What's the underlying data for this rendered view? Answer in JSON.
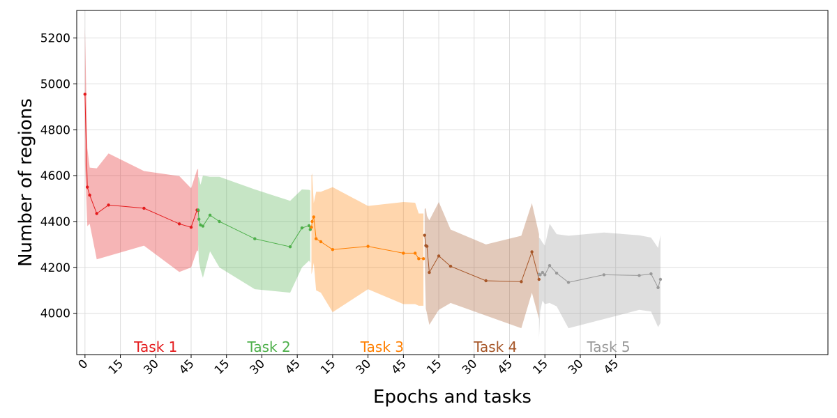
{
  "chart_data": {
    "type": "line",
    "xlabel": "Epochs and tasks",
    "ylabel": "Number of regions",
    "ylim": [
      3820,
      5320
    ],
    "xlim": [
      -3.5,
      315
    ],
    "grid": true,
    "y_ticks": [
      4000,
      4200,
      4400,
      4600,
      4800,
      5000,
      5200
    ],
    "x_ticks": [
      {
        "x": 0,
        "label": "0"
      },
      {
        "x": 15,
        "label": "15"
      },
      {
        "x": 30,
        "label": "30"
      },
      {
        "x": 45,
        "label": "45"
      },
      {
        "x": 60,
        "label": "15"
      },
      {
        "x": 75,
        "label": "30"
      },
      {
        "x": 90,
        "label": "45"
      },
      {
        "x": 105,
        "label": "15"
      },
      {
        "x": 120,
        "label": "30"
      },
      {
        "x": 135,
        "label": "45"
      },
      {
        "x": 150,
        "label": "15"
      },
      {
        "x": 165,
        "label": "30"
      },
      {
        "x": 180,
        "label": "45"
      },
      {
        "x": 195,
        "label": "15"
      },
      {
        "x": 210,
        "label": "30"
      },
      {
        "x": 225,
        "label": "45"
      }
    ],
    "series": [
      {
        "name": "Task 1",
        "color": "#e41a1c",
        "x": [
          0,
          1,
          2,
          5,
          10,
          25,
          40,
          45,
          47.5,
          48
        ],
        "y": [
          4955,
          4550,
          4515,
          4435,
          4472,
          4458,
          4390,
          4375,
          4450,
          4448
        ],
        "lower": [
          4660,
          4380,
          4390,
          4235,
          4250,
          4295,
          4180,
          4200,
          4275,
          4270
        ],
        "upper": [
          5250,
          4720,
          4635,
          4632,
          4697,
          4620,
          4598,
          4545,
          4625,
          4630
        ]
      },
      {
        "name": "Task 2",
        "color": "#4daf4a",
        "x": [
          48,
          48.3,
          49,
          50,
          53,
          57,
          72,
          87,
          92,
          95,
          95.5
        ],
        "y": [
          4450,
          4410,
          4385,
          4380,
          4428,
          4400,
          4325,
          4290,
          4372,
          4382,
          4365
        ],
        "lower": [
          4300,
          4225,
          4190,
          4155,
          4270,
          4200,
          4105,
          4090,
          4200,
          4230,
          4220
        ],
        "upper": [
          4595,
          4590,
          4560,
          4600,
          4595,
          4595,
          4540,
          4490,
          4540,
          4538,
          4535
        ]
      },
      {
        "name": "Task 3",
        "color": "#ff7f00",
        "x": [
          96,
          96.3,
          97,
          98,
          100,
          105,
          120,
          135,
          140,
          141.5,
          143.5
        ],
        "y": [
          4375,
          4400,
          4420,
          4325,
          4312,
          4278,
          4292,
          4262,
          4262,
          4238,
          4238
        ],
        "lower": [
          4170,
          4180,
          4220,
          4100,
          4090,
          4005,
          4105,
          4040,
          4040,
          4033,
          4033
        ],
        "upper": [
          4600,
          4610,
          4480,
          4530,
          4530,
          4550,
          4468,
          4485,
          4482,
          4435,
          4435
        ]
      },
      {
        "name": "Task 4",
        "color": "#a65628",
        "x": [
          144,
          144.5,
          145,
          146,
          150,
          155,
          170,
          185,
          189.5,
          192.5
        ],
        "y": [
          4340,
          4295,
          4292,
          4178,
          4250,
          4205,
          4142,
          4138,
          4268,
          4148
        ],
        "lower": [
          4230,
          4020,
          4000,
          3950,
          4015,
          4045,
          3990,
          3935,
          4090,
          3975
        ],
        "upper": [
          4455,
          4458,
          4425,
          4405,
          4485,
          4365,
          4300,
          4338,
          4480,
          4345
        ]
      },
      {
        "name": "Task 5",
        "color": "#999999",
        "x": [
          192.5,
          193,
          194,
          195,
          197,
          200,
          205,
          220,
          235,
          240,
          243,
          244
        ],
        "y": [
          4170,
          4168,
          4178,
          4168,
          4208,
          4175,
          4135,
          4168,
          4165,
          4172,
          4112,
          4148
        ],
        "lower": [
          3890,
          4010,
          4055,
          4040,
          4045,
          4030,
          3935,
          3975,
          4015,
          4008,
          3940,
          3958
        ],
        "upper": [
          4330,
          4325,
          4308,
          4295,
          4390,
          4345,
          4338,
          4352,
          4340,
          4330,
          4285,
          4340
        ]
      }
    ],
    "task_labels": [
      {
        "label": "Task 1",
        "color": "#e41a1c"
      },
      {
        "label": "Task 2",
        "color": "#4daf4a"
      },
      {
        "label": "Task 3",
        "color": "#ff7f00"
      },
      {
        "label": "Task 4",
        "color": "#a65628"
      },
      {
        "label": "Task 5",
        "color": "#999999"
      }
    ]
  }
}
